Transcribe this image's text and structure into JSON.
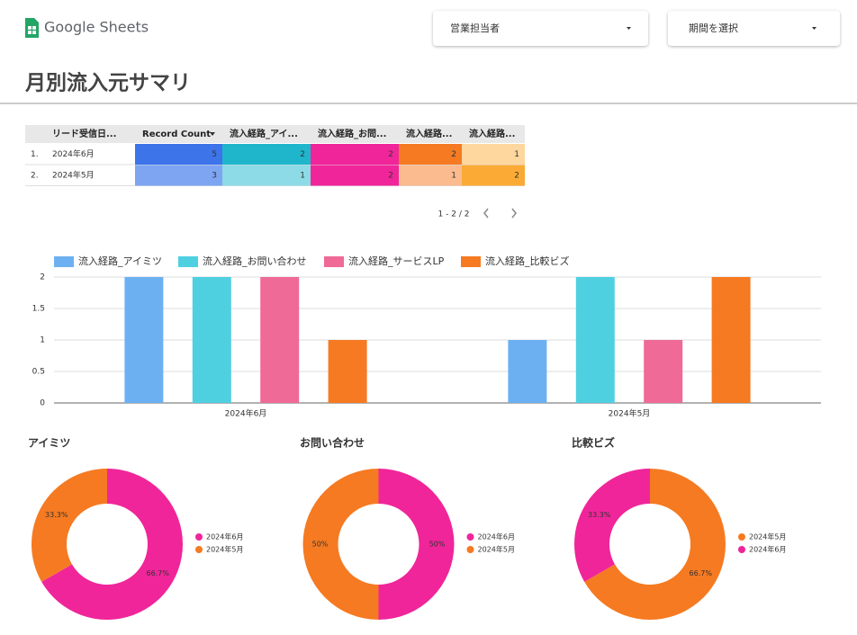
{
  "header": {
    "app_name": "Google Sheets",
    "filters": [
      "営業担当者",
      "期間を選択"
    ]
  },
  "page_title": "月別流入元サマリ",
  "table": {
    "columns": [
      "リード受信日...",
      "Record Count",
      "流入経路_アイ...",
      "流入経路_お問...",
      "流入経路...",
      "流入経路..."
    ],
    "rows": [
      {
        "index": "1.",
        "date": "2024年6月",
        "values": [
          5,
          2,
          2,
          2,
          1
        ],
        "cell_colors": [
          "#3d74ea",
          "#1fb6cc",
          "#f0259a",
          "#f57a22",
          "#fdd79e"
        ]
      },
      {
        "index": "2.",
        "date": "2024年5月",
        "values": [
          3,
          1,
          2,
          1,
          2
        ],
        "cell_colors": [
          "#7ea5f2",
          "#8cdbe6",
          "#f0259a",
          "#fbbb8e",
          "#fbab35"
        ]
      }
    ],
    "pagination": "1 - 2 / 2"
  },
  "chart_data": [
    {
      "type": "bar",
      "categories": [
        "2024年6月",
        "2024年5月"
      ],
      "series": [
        {
          "name": "流入経路_アイミツ",
          "color": "#6cb0f2",
          "values": [
            2,
            1
          ]
        },
        {
          "name": "流入経路_お問い合わせ",
          "color": "#4fd0e0",
          "values": [
            2,
            2
          ]
        },
        {
          "name": "流入経路_サービスLP",
          "color": "#ef6a96",
          "values": [
            2,
            1
          ]
        },
        {
          "name": "流入経路_比較ビズ",
          "color": "#f57a22",
          "values": [
            1,
            2
          ]
        }
      ],
      "ylim": [
        0,
        2
      ],
      "yticks": [
        0,
        0.5,
        1,
        1.5,
        2
      ],
      "grid": true
    },
    {
      "type": "pie",
      "title": "アイミツ",
      "categories": [
        "2024年6月",
        "2024年5月"
      ],
      "values": [
        66.7,
        33.3
      ],
      "value_labels": [
        "66.7%",
        "33.3%"
      ],
      "colors": [
        "#f0259a",
        "#f57a22"
      ]
    },
    {
      "type": "pie",
      "title": "お問い合わせ",
      "categories": [
        "2024年6月",
        "2024年5月"
      ],
      "values": [
        50,
        50
      ],
      "value_labels": [
        "50%",
        "50%"
      ],
      "colors": [
        "#f0259a",
        "#f57a22"
      ]
    },
    {
      "type": "pie",
      "title": "比較ビズ",
      "categories": [
        "2024年5月",
        "2024年6月"
      ],
      "values": [
        66.7,
        33.3
      ],
      "value_labels": [
        "66.7%",
        "33.3%"
      ],
      "colors": [
        "#f57a22",
        "#f0259a"
      ]
    }
  ]
}
